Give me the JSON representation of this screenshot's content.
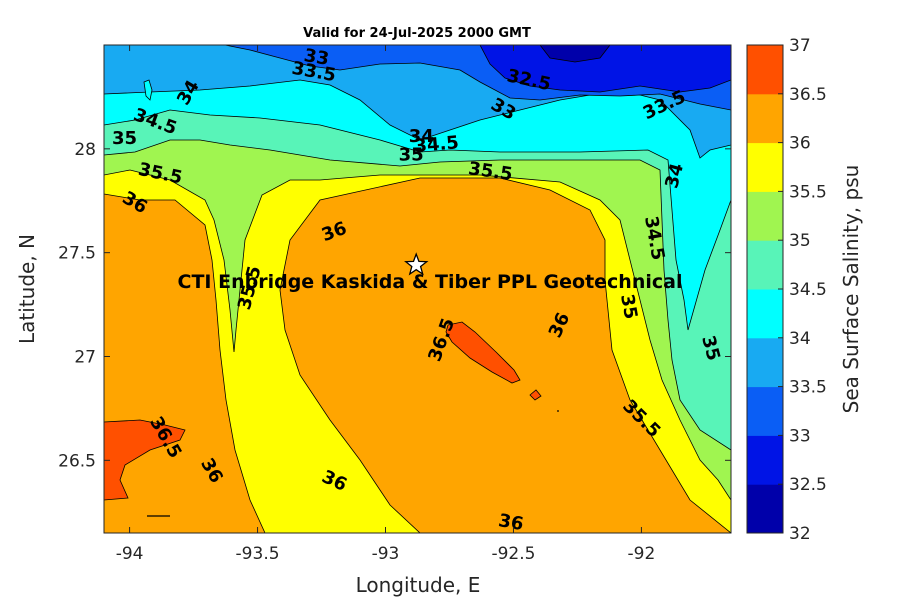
{
  "title": "Valid for 24-Jul-2025 2000 GMT",
  "xlabel": "Longitude, E",
  "ylabel": "Latitude, N",
  "colorbar_label": "Sea Surface Salinity, psu",
  "annotation": "CTI Enbridge  Kaskida & Tiber PPL Geotechnical",
  "site_marker": {
    "symbol": "star",
    "lon": -92.88,
    "lat": 27.44
  },
  "chart_data": {
    "type": "contour",
    "xlim": [
      -94.1,
      -91.65
    ],
    "ylim": [
      26.15,
      28.5
    ],
    "x_ticks": [
      -94,
      -93.5,
      -93,
      -92.5,
      -92
    ],
    "x_tick_labels": [
      "-94",
      "-93.5",
      "-93",
      "-92.5",
      "-92"
    ],
    "y_ticks": [
      26.5,
      27,
      27.5,
      28
    ],
    "y_tick_labels": [
      "26.5",
      "27",
      "27.5",
      "28"
    ],
    "levels": [
      32,
      32.5,
      33,
      33.5,
      34,
      34.5,
      35,
      35.5,
      36,
      36.5,
      37
    ],
    "colorbar_ticks": [
      "32",
      "32.5",
      "33",
      "33.5",
      "34",
      "34.5",
      "35",
      "35.5",
      "36",
      "36.5",
      "37"
    ],
    "colors": [
      "#0000aa",
      "#0014e6",
      "#0a5ef5",
      "#18aaf2",
      "#00ffff",
      "#58f4b8",
      "#a0f550",
      "#ffff00",
      "#ffa500",
      "#ff5000"
    ],
    "contour_labels": [
      {
        "text": "33",
        "lon": -93.27,
        "lat": 28.44,
        "rot": 10
      },
      {
        "text": "33.5",
        "lon": -93.28,
        "lat": 28.37,
        "rot": 10
      },
      {
        "text": "32.5",
        "lon": -92.44,
        "lat": 28.33,
        "rot": 12
      },
      {
        "text": "33",
        "lon": -92.54,
        "lat": 28.19,
        "rot": 30
      },
      {
        "text": "33.5",
        "lon": -91.91,
        "lat": 28.21,
        "rot": -25
      },
      {
        "text": "34",
        "lon": -93.77,
        "lat": 28.27,
        "rot": -60
      },
      {
        "text": "34.5",
        "lon": -93.9,
        "lat": 28.13,
        "rot": 20
      },
      {
        "text": "35",
        "lon": -94.02,
        "lat": 28.05,
        "rot": 0
      },
      {
        "text": "35.5",
        "lon": -93.88,
        "lat": 27.88,
        "rot": 12
      },
      {
        "text": "36",
        "lon": -93.98,
        "lat": 27.74,
        "rot": 30
      },
      {
        "text": "34",
        "lon": -92.86,
        "lat": 28.06,
        "rot": 0
      },
      {
        "text": "34.5",
        "lon": -92.8,
        "lat": 28.02,
        "rot": -5
      },
      {
        "text": "35",
        "lon": -92.9,
        "lat": 27.97,
        "rot": 0
      },
      {
        "text": "35.5",
        "lon": -92.59,
        "lat": 27.89,
        "rot": 8
      },
      {
        "text": "34",
        "lon": -91.87,
        "lat": 27.87,
        "rot": -75
      },
      {
        "text": "34.5",
        "lon": -91.95,
        "lat": 27.57,
        "rot": 80
      },
      {
        "text": "35",
        "lon": -92.05,
        "lat": 27.24,
        "rot": 80
      },
      {
        "text": "35",
        "lon": -91.73,
        "lat": 27.04,
        "rot": 75
      },
      {
        "text": "36",
        "lon": -93.2,
        "lat": 27.6,
        "rot": -20
      },
      {
        "text": "35.5",
        "lon": -93.53,
        "lat": 27.33,
        "rot": -75
      },
      {
        "text": "36.5",
        "lon": -92.78,
        "lat": 27.08,
        "rot": -70
      },
      {
        "text": "36",
        "lon": -92.32,
        "lat": 27.15,
        "rot": -65
      },
      {
        "text": "35.5",
        "lon": -92.0,
        "lat": 26.7,
        "rot": 45
      },
      {
        "text": "36.5",
        "lon": -93.86,
        "lat": 26.61,
        "rot": 60
      },
      {
        "text": "36",
        "lon": -93.68,
        "lat": 26.45,
        "rot": 60
      },
      {
        "text": "36",
        "lon": -93.2,
        "lat": 26.4,
        "rot": 25
      },
      {
        "text": "36",
        "lon": -92.51,
        "lat": 26.2,
        "rot": 10
      }
    ]
  }
}
